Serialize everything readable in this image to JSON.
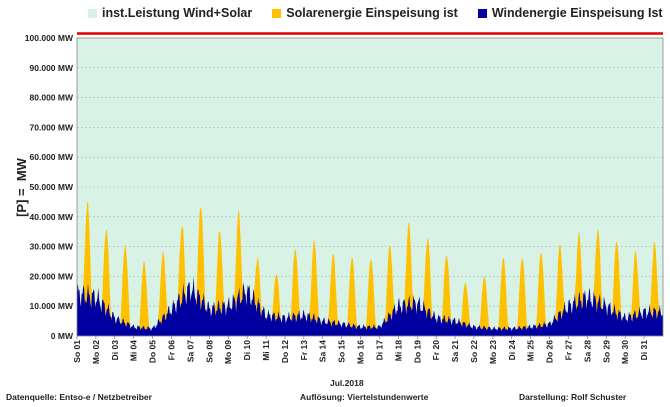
{
  "legend": {
    "capacity": {
      "label": "inst.Leistung Wind+Solar",
      "color": "#d9f2e6"
    },
    "solar": {
      "label": "Solarenergie Einspeisung ist",
      "color": "#ffc000"
    },
    "wind": {
      "label": "Windenergie Einspeisung Ist",
      "color": "#0000a0"
    }
  },
  "footer": {
    "source": "Datenquelle:  Entso-e  / Netzbetreiber",
    "resolution": "Auflösung: Viertelstundenwerte",
    "author": "Darstellung: Rolf Schuster",
    "month": "Jul.2018"
  },
  "chart_data": {
    "type": "area",
    "title": "",
    "xlabel": "Jul.2018",
    "ylabel": "[P] =  MW",
    "ylim": [
      0,
      100000
    ],
    "yticks": [
      "0 MW",
      "10.000 MW",
      "20.000 MW",
      "30.000 MW",
      "40.000 MW",
      "50.000 MW",
      "60.000 MW",
      "70.000 MW",
      "80.000 MW",
      "90.000 MW",
      "100.000 MW"
    ],
    "categories": [
      "So 01",
      "Mo 02",
      "Di 03",
      "Mi 04",
      "Do 05",
      "Fr 06",
      "Sa 07",
      "So 08",
      "Mo 09",
      "Di 10",
      "Mi 11",
      "Do 12",
      "Fr 13",
      "Sa 14",
      "So 15",
      "Mo 16",
      "Di 17",
      "Mi 18",
      "Do 19",
      "Fr 20",
      "Sa 21",
      "So 22",
      "Mo 23",
      "Di 24",
      "Mi 25",
      "Do 26",
      "Fr 27",
      "Sa 28",
      "So 29",
      "Mo 30",
      "Di 31"
    ],
    "capacity_line_mw": 101500,
    "series": [
      {
        "name": "Windenergie Einspeisung Ist",
        "daily_wind_mw": [
          14000,
          13000,
          6000,
          3000,
          2500,
          9000,
          16000,
          9000,
          10000,
          15000,
          7000,
          6000,
          7000,
          5000,
          4000,
          3000,
          3000,
          10000,
          11000,
          6000,
          5000,
          3000,
          2500,
          2500,
          3000,
          4000,
          10000,
          13000,
          10000,
          6000,
          8000
        ]
      },
      {
        "name": "Solarenergie Einspeisung ist",
        "daily_peak_mw": [
          40000,
          33000,
          29000,
          24000,
          26000,
          33000,
          40000,
          32000,
          37000,
          22500,
          19000,
          27000,
          30000,
          26000,
          25500,
          25000,
          28000,
          34000,
          30000,
          25500,
          16500,
          19000,
          25500,
          25500,
          27000,
          28000,
          30000,
          32000,
          29500,
          26000,
          28500
        ]
      }
    ]
  }
}
